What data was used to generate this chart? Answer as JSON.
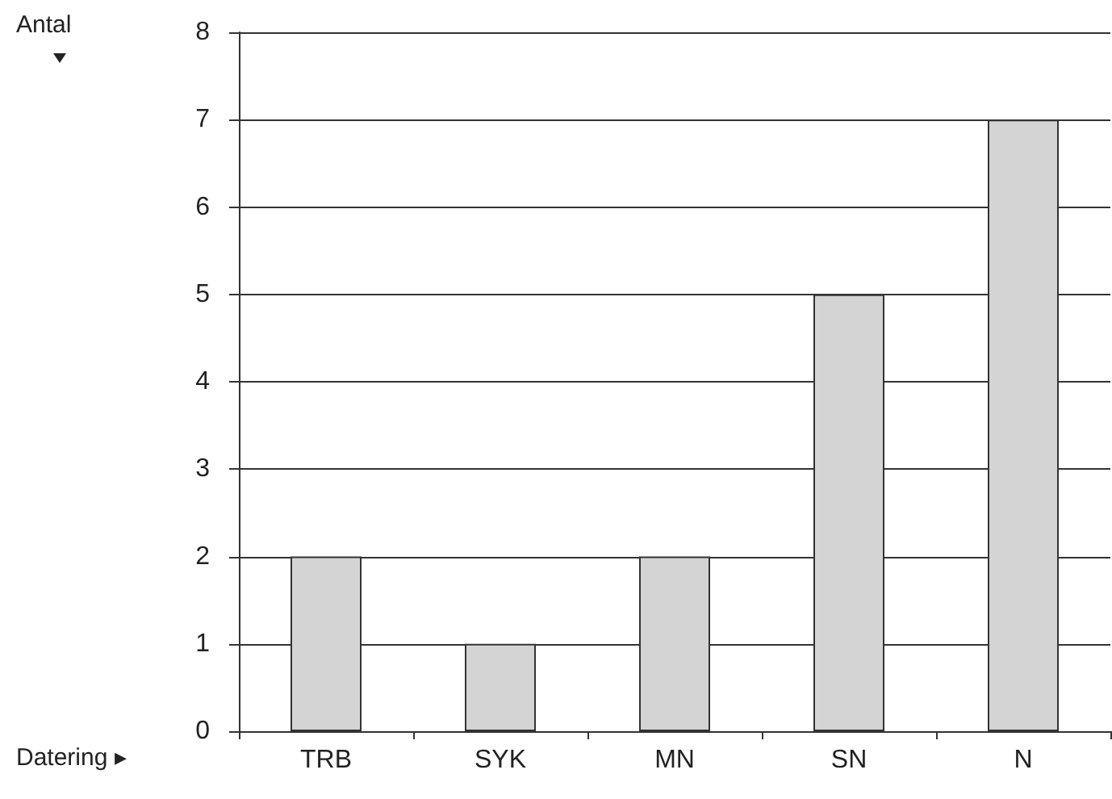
{
  "chart_data": {
    "type": "bar",
    "xlabel": "Datering ▸",
    "annotations": [
      "Antal"
    ],
    "categories": [
      "TRB",
      "SYK",
      "MN",
      "SN",
      "N"
    ],
    "values": [
      2,
      1,
      2,
      5,
      7
    ],
    "color": "#d4d4d4",
    "ylim": [
      0,
      8
    ],
    "yticks": [
      0,
      1,
      2,
      3,
      4,
      5,
      6,
      7,
      8
    ],
    "grid": "y"
  }
}
